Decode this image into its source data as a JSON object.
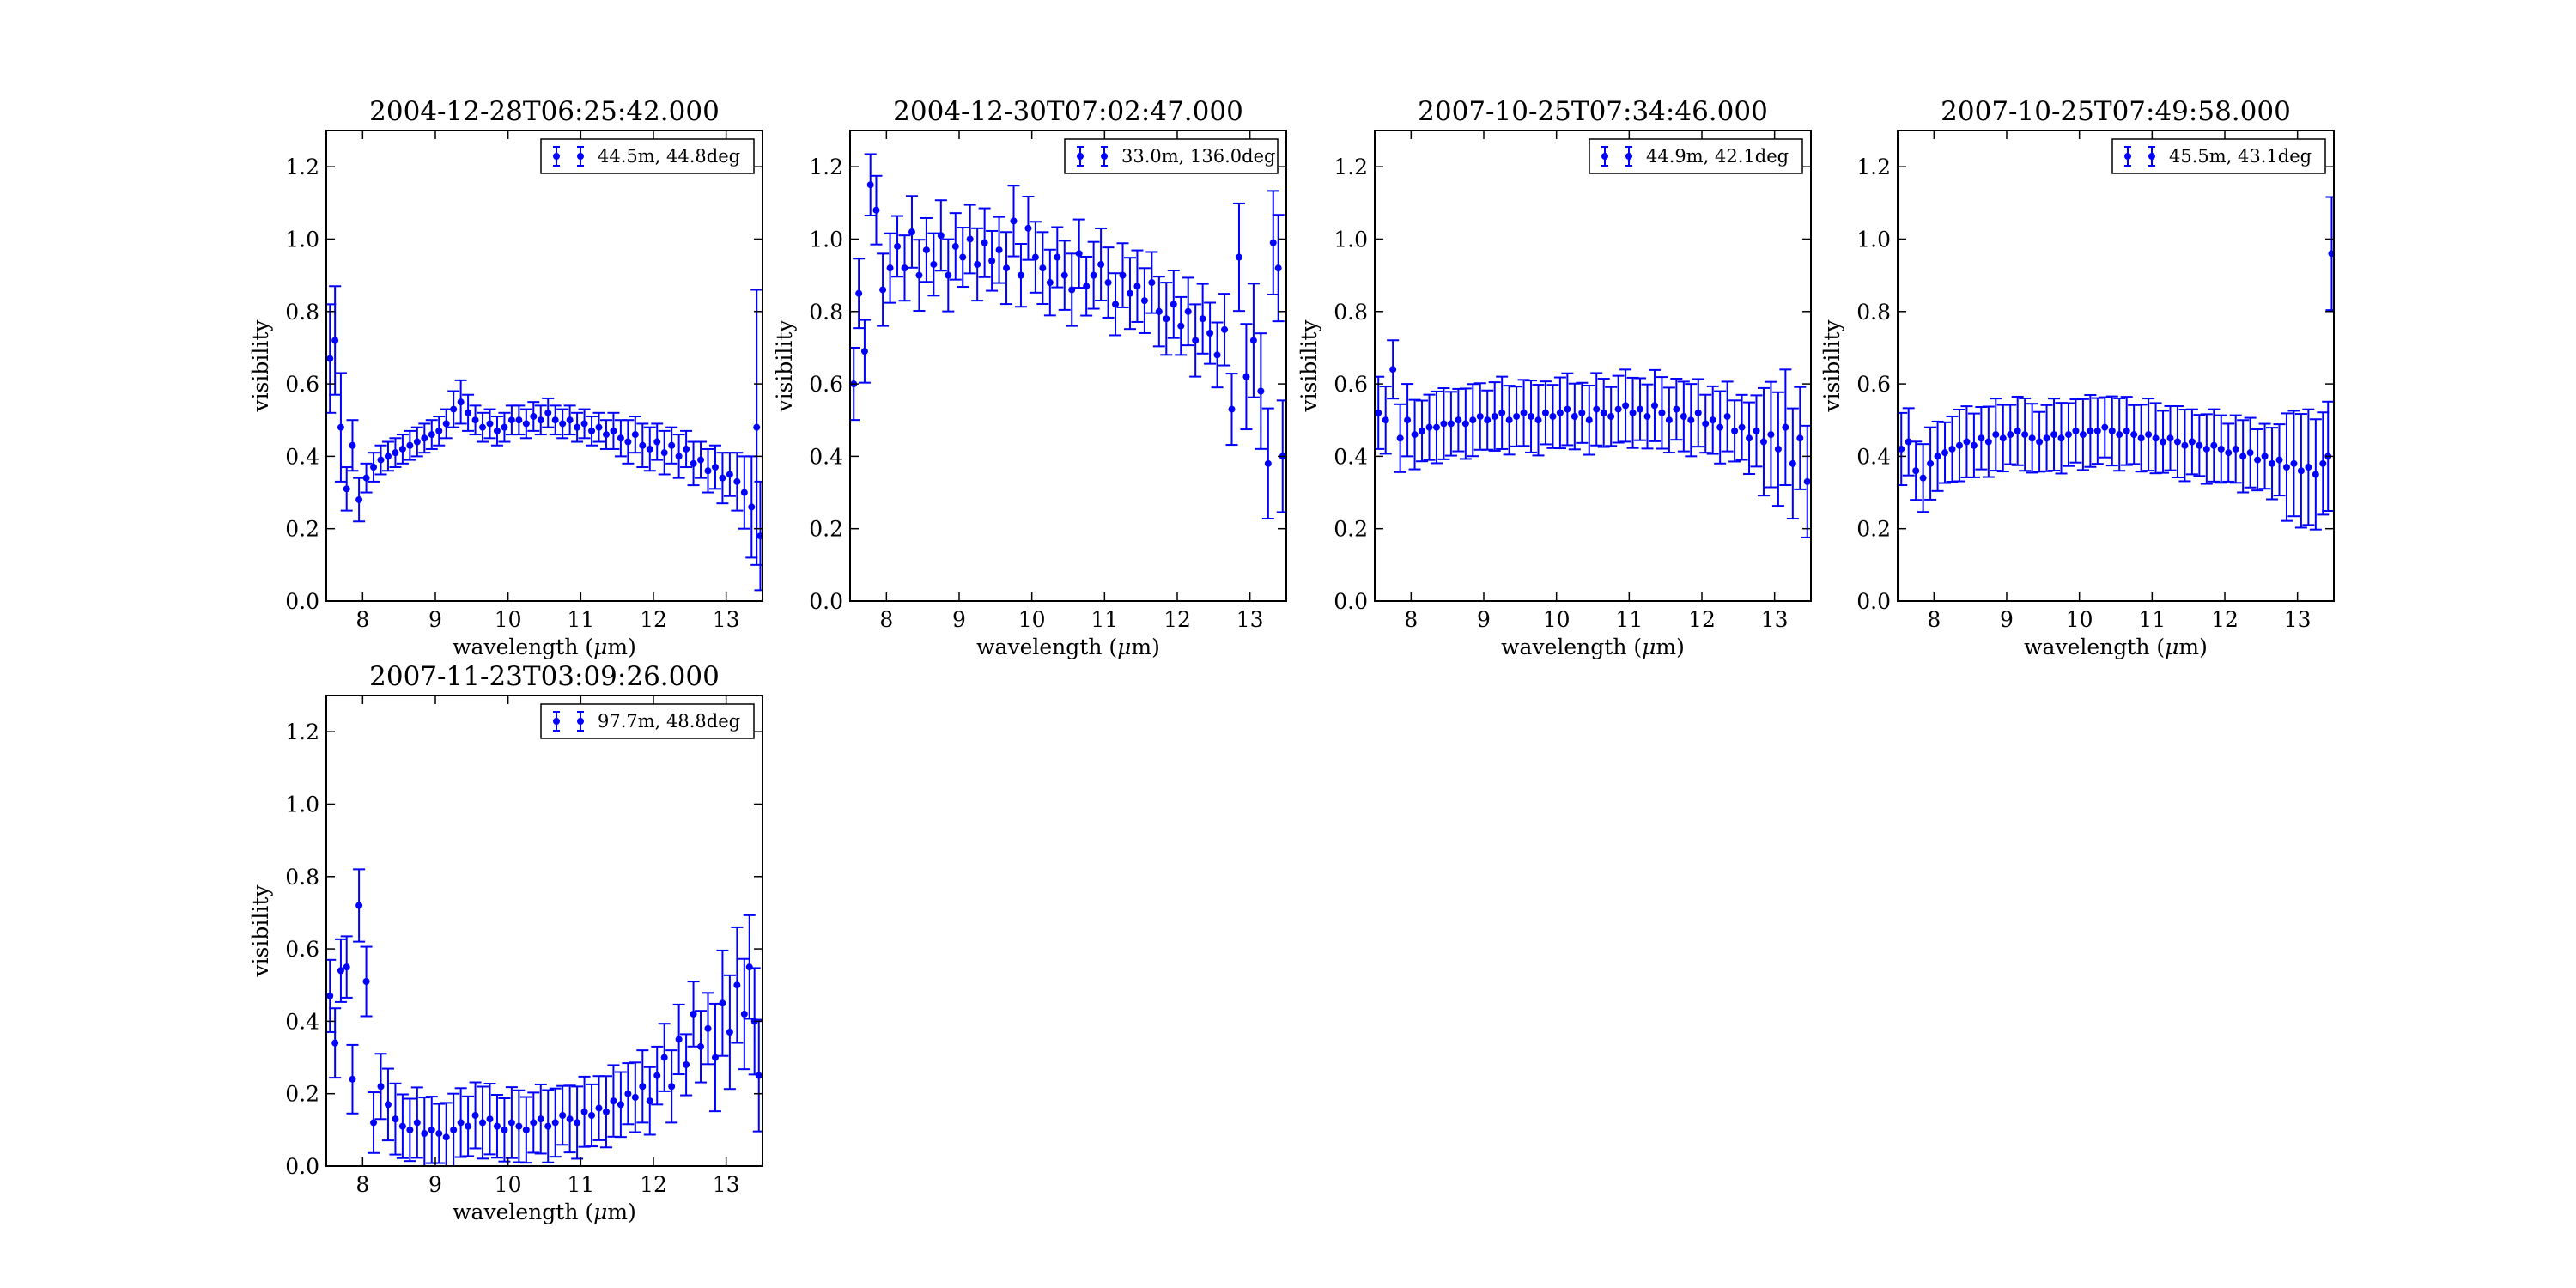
{
  "figure": {
    "background": "#ffffff",
    "series_color": "#0000ff"
  },
  "chart_data": [
    {
      "type": "scatter",
      "title": "2004-12-28T06:25:42.000",
      "xlabel": "wavelength ($\\mu$m)",
      "ylabel": "visibility",
      "xlim": [
        7.5,
        13.5
      ],
      "ylim": [
        0.0,
        1.3
      ],
      "xticks": [
        8,
        9,
        10,
        11,
        12,
        13
      ],
      "yticks": [
        0.0,
        0.2,
        0.4,
        0.6,
        0.8,
        1.0,
        1.2
      ],
      "legend_position": "top-right",
      "grid": false,
      "series": [
        {
          "name": "44.5m, 44.8deg",
          "marker": "errorbar-dot",
          "x": [
            7.55,
            7.62,
            7.7,
            7.78,
            7.86,
            7.95,
            8.05,
            8.15,
            8.25,
            8.35,
            8.45,
            8.55,
            8.65,
            8.75,
            8.85,
            8.95,
            9.05,
            9.15,
            9.25,
            9.35,
            9.45,
            9.55,
            9.65,
            9.75,
            9.85,
            9.95,
            10.05,
            10.15,
            10.25,
            10.35,
            10.45,
            10.55,
            10.65,
            10.75,
            10.85,
            10.95,
            11.05,
            11.15,
            11.25,
            11.35,
            11.45,
            11.55,
            11.65,
            11.75,
            11.85,
            11.95,
            12.05,
            12.15,
            12.25,
            12.35,
            12.45,
            12.55,
            12.65,
            12.75,
            12.85,
            12.95,
            13.05,
            13.15,
            13.25,
            13.35,
            13.42,
            13.47
          ],
          "y": [
            0.67,
            0.72,
            0.48,
            0.31,
            0.43,
            0.28,
            0.34,
            0.37,
            0.39,
            0.4,
            0.41,
            0.42,
            0.43,
            0.44,
            0.45,
            0.46,
            0.47,
            0.49,
            0.53,
            0.55,
            0.52,
            0.5,
            0.48,
            0.49,
            0.47,
            0.48,
            0.5,
            0.5,
            0.49,
            0.51,
            0.5,
            0.52,
            0.5,
            0.49,
            0.5,
            0.48,
            0.49,
            0.47,
            0.48,
            0.46,
            0.47,
            0.45,
            0.44,
            0.46,
            0.43,
            0.42,
            0.44,
            0.41,
            0.43,
            0.4,
            0.42,
            0.38,
            0.39,
            0.36,
            0.37,
            0.34,
            0.35,
            0.33,
            0.3,
            0.26,
            0.48,
            0.18
          ],
          "yerr": [
            0.15,
            0.15,
            0.15,
            0.06,
            0.07,
            0.06,
            0.04,
            0.04,
            0.04,
            0.04,
            0.04,
            0.04,
            0.04,
            0.04,
            0.04,
            0.04,
            0.04,
            0.04,
            0.05,
            0.06,
            0.05,
            0.04,
            0.04,
            0.04,
            0.04,
            0.04,
            0.04,
            0.04,
            0.04,
            0.04,
            0.04,
            0.04,
            0.04,
            0.04,
            0.04,
            0.04,
            0.04,
            0.04,
            0.04,
            0.04,
            0.05,
            0.05,
            0.06,
            0.05,
            0.06,
            0.06,
            0.05,
            0.06,
            0.05,
            0.06,
            0.05,
            0.06,
            0.05,
            0.06,
            0.06,
            0.07,
            0.06,
            0.08,
            0.1,
            0.14,
            0.38,
            0.15
          ]
        }
      ]
    },
    {
      "type": "scatter",
      "title": "2004-12-30T07:02:47.000",
      "xlabel": "wavelength ($\\mu$m)",
      "ylabel": "visibility",
      "xlim": [
        7.5,
        13.5
      ],
      "ylim": [
        0.0,
        1.3
      ],
      "xticks": [
        8,
        9,
        10,
        11,
        12,
        13
      ],
      "yticks": [
        0.0,
        0.2,
        0.4,
        0.6,
        0.8,
        1.0,
        1.2
      ],
      "legend_position": "top-right",
      "grid": false,
      "series": [
        {
          "name": "33.0m, 136.0deg",
          "marker": "errorbar-dot",
          "x": [
            7.55,
            7.62,
            7.7,
            7.78,
            7.86,
            7.95,
            8.05,
            8.15,
            8.25,
            8.35,
            8.45,
            8.55,
            8.65,
            8.75,
            8.85,
            8.95,
            9.05,
            9.15,
            9.25,
            9.35,
            9.45,
            9.55,
            9.65,
            9.75,
            9.85,
            9.95,
            10.05,
            10.15,
            10.25,
            10.35,
            10.45,
            10.55,
            10.65,
            10.75,
            10.85,
            10.95,
            11.05,
            11.15,
            11.25,
            11.35,
            11.45,
            11.55,
            11.65,
            11.75,
            11.85,
            11.95,
            12.05,
            12.15,
            12.25,
            12.35,
            12.45,
            12.55,
            12.65,
            12.75,
            12.85,
            12.95,
            13.05,
            13.15,
            13.25,
            13.32,
            13.39,
            13.45
          ],
          "y": [
            0.6,
            0.85,
            0.69,
            1.15,
            1.08,
            0.86,
            0.92,
            0.98,
            0.92,
            1.02,
            0.9,
            0.97,
            0.93,
            1.01,
            0.9,
            0.98,
            0.95,
            1.0,
            0.93,
            0.99,
            0.94,
            0.97,
            0.92,
            1.05,
            0.9,
            1.03,
            0.95,
            0.92,
            0.88,
            0.95,
            0.9,
            0.86,
            0.96,
            0.87,
            0.9,
            0.93,
            0.88,
            0.82,
            0.9,
            0.85,
            0.87,
            0.83,
            0.88,
            0.8,
            0.78,
            0.82,
            0.76,
            0.8,
            0.72,
            0.78,
            0.74,
            0.68,
            0.75,
            0.53,
            0.95,
            0.62,
            0.72,
            0.58,
            0.38,
            0.99,
            0.92,
            0.4
          ]
        }
      ]
    },
    {
      "type": "scatter",
      "title": "2007-10-25T07:34:46.000",
      "xlabel": "wavelength ($\\mu$m)",
      "ylabel": "visibility",
      "xlim": [
        7.5,
        13.5
      ],
      "ylim": [
        0.0,
        1.3
      ],
      "xticks": [
        8,
        9,
        10,
        11,
        12,
        13
      ],
      "yticks": [
        0.0,
        0.2,
        0.4,
        0.6,
        0.8,
        1.0,
        1.2
      ],
      "legend_position": "top-right",
      "grid": false,
      "series": [
        {
          "name": "44.9m, 42.1deg",
          "marker": "errorbar-dot",
          "x": [
            7.55,
            7.65,
            7.75,
            7.85,
            7.95,
            8.05,
            8.15,
            8.25,
            8.35,
            8.45,
            8.55,
            8.65,
            8.75,
            8.85,
            8.95,
            9.05,
            9.15,
            9.25,
            9.35,
            9.45,
            9.55,
            9.65,
            9.75,
            9.85,
            9.95,
            10.05,
            10.15,
            10.25,
            10.35,
            10.45,
            10.55,
            10.65,
            10.75,
            10.85,
            10.95,
            11.05,
            11.15,
            11.25,
            11.35,
            11.45,
            11.55,
            11.65,
            11.75,
            11.85,
            11.95,
            12.05,
            12.15,
            12.25,
            12.35,
            12.45,
            12.55,
            12.65,
            12.75,
            12.85,
            12.95,
            13.05,
            13.15,
            13.25,
            13.35,
            13.45
          ],
          "y": [
            0.52,
            0.5,
            0.64,
            0.45,
            0.5,
            0.46,
            0.47,
            0.48,
            0.48,
            0.49,
            0.49,
            0.5,
            0.49,
            0.5,
            0.51,
            0.5,
            0.51,
            0.52,
            0.5,
            0.51,
            0.52,
            0.51,
            0.5,
            0.52,
            0.51,
            0.52,
            0.53,
            0.51,
            0.52,
            0.5,
            0.53,
            0.52,
            0.51,
            0.53,
            0.54,
            0.52,
            0.53,
            0.51,
            0.54,
            0.52,
            0.5,
            0.53,
            0.51,
            0.5,
            0.52,
            0.49,
            0.5,
            0.48,
            0.51,
            0.47,
            0.48,
            0.45,
            0.47,
            0.44,
            0.46,
            0.42,
            0.48,
            0.38,
            0.45,
            0.33
          ]
        }
      ]
    },
    {
      "type": "scatter",
      "title": "2007-10-25T07:49:58.000",
      "xlabel": "wavelength ($\\mu$m)",
      "ylabel": "visibility",
      "xlim": [
        7.5,
        13.5
      ],
      "ylim": [
        0.0,
        1.3
      ],
      "xticks": [
        8,
        9,
        10,
        11,
        12,
        13
      ],
      "yticks": [
        0.0,
        0.2,
        0.4,
        0.6,
        0.8,
        1.0,
        1.2
      ],
      "legend_position": "top-right",
      "grid": false,
      "series": [
        {
          "name": "45.5m, 43.1deg",
          "marker": "errorbar-dot",
          "x": [
            7.55,
            7.65,
            7.75,
            7.85,
            7.95,
            8.05,
            8.15,
            8.25,
            8.35,
            8.45,
            8.55,
            8.65,
            8.75,
            8.85,
            8.95,
            9.05,
            9.15,
            9.25,
            9.35,
            9.45,
            9.55,
            9.65,
            9.75,
            9.85,
            9.95,
            10.05,
            10.15,
            10.25,
            10.35,
            10.45,
            10.55,
            10.65,
            10.75,
            10.85,
            10.95,
            11.05,
            11.15,
            11.25,
            11.35,
            11.45,
            11.55,
            11.65,
            11.75,
            11.85,
            11.95,
            12.05,
            12.15,
            12.25,
            12.35,
            12.45,
            12.55,
            12.65,
            12.75,
            12.85,
            12.95,
            13.05,
            13.15,
            13.25,
            13.35,
            13.42,
            13.47
          ],
          "y": [
            0.42,
            0.44,
            0.36,
            0.34,
            0.38,
            0.4,
            0.41,
            0.42,
            0.43,
            0.44,
            0.43,
            0.45,
            0.44,
            0.46,
            0.45,
            0.46,
            0.47,
            0.46,
            0.45,
            0.44,
            0.45,
            0.46,
            0.45,
            0.46,
            0.47,
            0.46,
            0.47,
            0.47,
            0.48,
            0.47,
            0.46,
            0.47,
            0.46,
            0.45,
            0.46,
            0.45,
            0.44,
            0.45,
            0.44,
            0.43,
            0.44,
            0.43,
            0.42,
            0.43,
            0.42,
            0.41,
            0.42,
            0.4,
            0.41,
            0.39,
            0.4,
            0.38,
            0.39,
            0.37,
            0.38,
            0.36,
            0.37,
            0.35,
            0.38,
            0.4,
            0.96
          ]
        }
      ]
    },
    {
      "type": "scatter",
      "title": "2007-11-23T03:09:26.000",
      "xlabel": "wavelength ($\\mu$m)",
      "ylabel": "visibility",
      "xlim": [
        7.5,
        13.5
      ],
      "ylim": [
        0.0,
        1.3
      ],
      "xticks": [
        8,
        9,
        10,
        11,
        12,
        13
      ],
      "yticks": [
        0.0,
        0.2,
        0.4,
        0.6,
        0.8,
        1.0,
        1.2
      ],
      "legend_position": "top-right",
      "grid": false,
      "series": [
        {
          "name": "97.7m, 48.8deg",
          "marker": "errorbar-dot",
          "x": [
            7.55,
            7.62,
            7.7,
            7.78,
            7.86,
            7.95,
            8.05,
            8.15,
            8.25,
            8.35,
            8.45,
            8.55,
            8.65,
            8.75,
            8.85,
            8.95,
            9.05,
            9.15,
            9.25,
            9.35,
            9.45,
            9.55,
            9.65,
            9.75,
            9.85,
            9.95,
            10.05,
            10.15,
            10.25,
            10.35,
            10.45,
            10.55,
            10.65,
            10.75,
            10.85,
            10.95,
            11.05,
            11.15,
            11.25,
            11.35,
            11.45,
            11.55,
            11.65,
            11.75,
            11.85,
            11.95,
            12.05,
            12.15,
            12.25,
            12.35,
            12.45,
            12.55,
            12.65,
            12.75,
            12.85,
            12.95,
            13.05,
            13.15,
            13.25,
            13.32,
            13.39,
            13.45
          ],
          "y": [
            0.47,
            0.34,
            0.54,
            0.55,
            0.24,
            0.72,
            0.51,
            0.12,
            0.22,
            0.17,
            0.13,
            0.11,
            0.1,
            0.12,
            0.09,
            0.1,
            0.09,
            0.08,
            0.1,
            0.12,
            0.11,
            0.14,
            0.12,
            0.13,
            0.11,
            0.1,
            0.12,
            0.11,
            0.1,
            0.12,
            0.13,
            0.11,
            0.12,
            0.14,
            0.13,
            0.12,
            0.15,
            0.14,
            0.16,
            0.15,
            0.18,
            0.17,
            0.2,
            0.19,
            0.22,
            0.18,
            0.25,
            0.3,
            0.22,
            0.35,
            0.28,
            0.42,
            0.33,
            0.38,
            0.3,
            0.45,
            0.37,
            0.5,
            0.42,
            0.55,
            0.4,
            0.25
          ]
        }
      ]
    }
  ]
}
